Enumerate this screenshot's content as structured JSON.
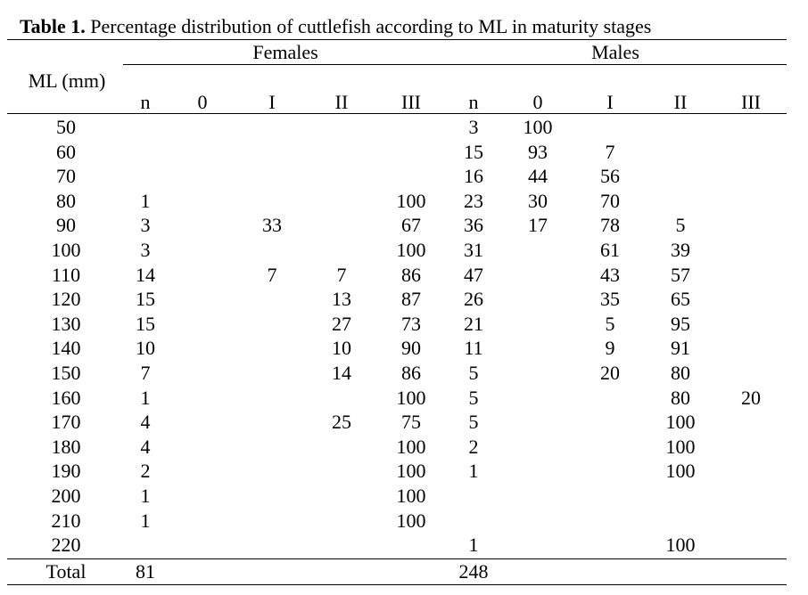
{
  "caption": {
    "lead": "Table 1.",
    "text": " Percentage distribution of cuttlefish according to ML in maturity stages"
  },
  "table": {
    "group_headers": [
      "Females",
      "Males"
    ],
    "row_header": "ML (mm)",
    "columns": [
      "n",
      "0",
      "I",
      "II",
      "III",
      "n",
      "0",
      "I",
      "II",
      "III"
    ],
    "rows": [
      {
        "ml": "50",
        "cells": [
          "",
          "",
          "",
          "",
          "",
          "3",
          "100",
          "",
          "",
          ""
        ]
      },
      {
        "ml": "60",
        "cells": [
          "",
          "",
          "",
          "",
          "",
          "15",
          "93",
          "7",
          "",
          ""
        ]
      },
      {
        "ml": "70",
        "cells": [
          "",
          "",
          "",
          "",
          "",
          "16",
          "44",
          "56",
          "",
          ""
        ]
      },
      {
        "ml": "80",
        "cells": [
          "1",
          "",
          "",
          "",
          "100",
          "23",
          "30",
          "70",
          "",
          ""
        ]
      },
      {
        "ml": "90",
        "cells": [
          "3",
          "",
          "33",
          "",
          "67",
          "36",
          "17",
          "78",
          "5",
          ""
        ]
      },
      {
        "ml": "100",
        "cells": [
          "3",
          "",
          "",
          "",
          "100",
          "31",
          "",
          "61",
          "39",
          ""
        ]
      },
      {
        "ml": "110",
        "cells": [
          "14",
          "",
          "7",
          "7",
          "86",
          "47",
          "",
          "43",
          "57",
          ""
        ]
      },
      {
        "ml": "120",
        "cells": [
          "15",
          "",
          "",
          "13",
          "87",
          "26",
          "",
          "35",
          "65",
          ""
        ]
      },
      {
        "ml": "130",
        "cells": [
          "15",
          "",
          "",
          "27",
          "73",
          "21",
          "",
          "5",
          "95",
          ""
        ]
      },
      {
        "ml": "140",
        "cells": [
          "10",
          "",
          "",
          "10",
          "90",
          "11",
          "",
          "9",
          "91",
          ""
        ]
      },
      {
        "ml": "150",
        "cells": [
          "7",
          "",
          "",
          "14",
          "86",
          "5",
          "",
          "20",
          "80",
          ""
        ]
      },
      {
        "ml": "160",
        "cells": [
          "1",
          "",
          "",
          "",
          "100",
          "5",
          "",
          "",
          "80",
          "20"
        ]
      },
      {
        "ml": "170",
        "cells": [
          "4",
          "",
          "",
          "25",
          "75",
          "5",
          "",
          "",
          "100",
          ""
        ]
      },
      {
        "ml": "180",
        "cells": [
          "4",
          "",
          "",
          "",
          "100",
          "2",
          "",
          "",
          "100",
          ""
        ]
      },
      {
        "ml": "190",
        "cells": [
          "2",
          "",
          "",
          "",
          "100",
          "1",
          "",
          "",
          "100",
          ""
        ]
      },
      {
        "ml": "200",
        "cells": [
          "1",
          "",
          "",
          "",
          "100",
          "",
          "",
          "",
          "",
          ""
        ]
      },
      {
        "ml": "210",
        "cells": [
          "1",
          "",
          "",
          "",
          "100",
          "",
          "",
          "",
          "",
          ""
        ]
      },
      {
        "ml": "220",
        "cells": [
          "",
          "",
          "",
          "",
          "",
          "1",
          "",
          "",
          "100",
          ""
        ]
      }
    ],
    "total": {
      "label": "Total",
      "cells": [
        "81",
        "",
        "",
        "",
        "",
        "248",
        "",
        "",
        "",
        ""
      ]
    }
  }
}
